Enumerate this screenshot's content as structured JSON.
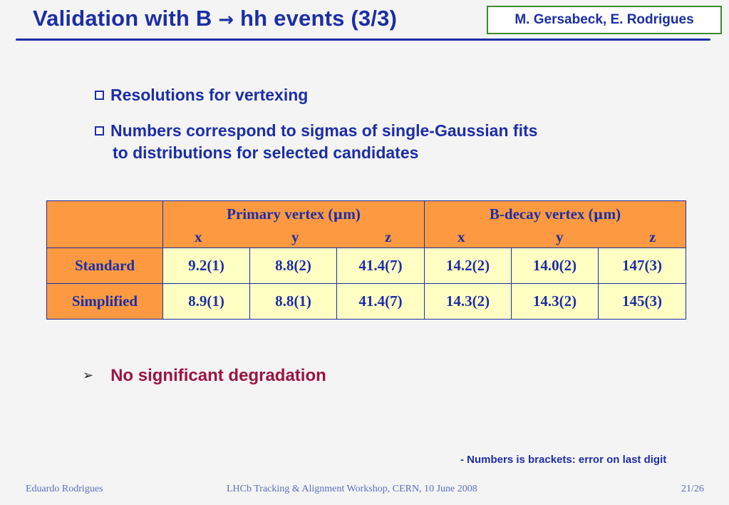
{
  "slide": {
    "title_prefix": "Validation with B ",
    "title_arrow": "→",
    "title_suffix": " hh events (3/3)",
    "authors": "M. Gersabeck, E. Rodrigues"
  },
  "bullets": [
    {
      "text": "Resolutions for vertexing"
    },
    {
      "line1": "Numbers correspond to sigmas of single-Gaussian fits",
      "line2": "to distributions for selected candidates"
    }
  ],
  "table": {
    "groups": [
      {
        "label_prefix": "Primary vertex (",
        "label_unit": "μ",
        "label_suffix": "m)"
      },
      {
        "label_prefix": "B-decay vertex (",
        "label_unit": "μ",
        "label_suffix": "m)"
      }
    ],
    "axes": [
      "x",
      "y",
      "z"
    ],
    "rows": [
      {
        "label": "Standard",
        "values": [
          "9.2(1)",
          "8.8(2)",
          "41.4(7)",
          "14.2(2)",
          "14.0(2)",
          "147(3)"
        ]
      },
      {
        "label": "Simplified",
        "values": [
          "8.9(1)",
          "8.8(1)",
          "41.4(7)",
          "14.3(2)",
          "14.3(2)",
          "145(3)"
        ]
      }
    ]
  },
  "conclusion": {
    "marker": "➢",
    "text": "No significant degradation"
  },
  "note": "- Numbers is brackets: error on last digit",
  "footer": {
    "left": "Eduardo Rodrigues",
    "center": "LHCb Tracking & Alignment Workshop, CERN, 10 June 2008",
    "right": "21/26"
  },
  "colors": {
    "title_blue": "#1c2ea6",
    "header_orange": "#fd9a41",
    "cell_yellow": "#ffffc4",
    "conclusion_red": "#9b1440"
  }
}
